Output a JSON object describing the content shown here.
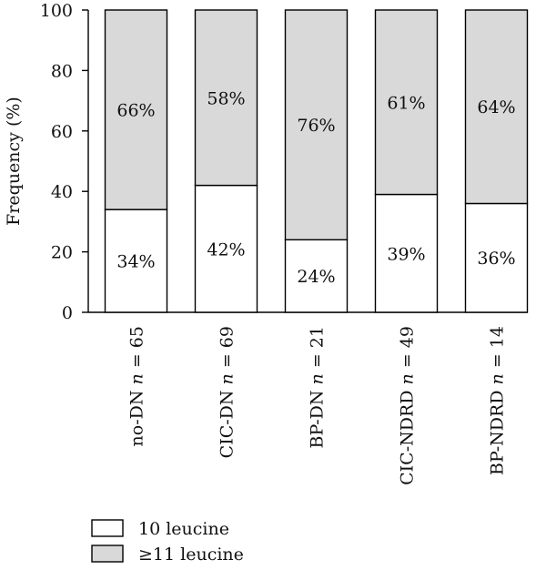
{
  "chart_data": {
    "type": "bar",
    "stacked": true,
    "ylabel": "Frequency (%)",
    "ylim": [
      0,
      100
    ],
    "yticks": [
      "0",
      "20",
      "40",
      "60",
      "80",
      "100"
    ],
    "categories": [
      {
        "prefix": "no-DN ",
        "n": "65"
      },
      {
        "prefix": "CIC-DN ",
        "n": "69"
      },
      {
        "prefix": "BP-DN ",
        "n": "21"
      },
      {
        "prefix": "CIC-NDRD ",
        "n": "49"
      },
      {
        "prefix": "BP-NDRD ",
        "n": "14"
      }
    ],
    "n_symbol": "n",
    "eq": " = ",
    "series": [
      {
        "name": "10 leucine",
        "color": "#ffffff",
        "values": [
          34,
          42,
          24,
          39,
          36
        ],
        "labels": [
          "34%",
          "42%",
          "24%",
          "39%",
          "36%"
        ]
      },
      {
        "name": "≥11 leucine",
        "color": "#d9d9d9",
        "values": [
          66,
          58,
          76,
          61,
          64
        ],
        "labels": [
          "66%",
          "58%",
          "76%",
          "61%",
          "64%"
        ]
      }
    ],
    "legend_position": "bottom-left"
  }
}
